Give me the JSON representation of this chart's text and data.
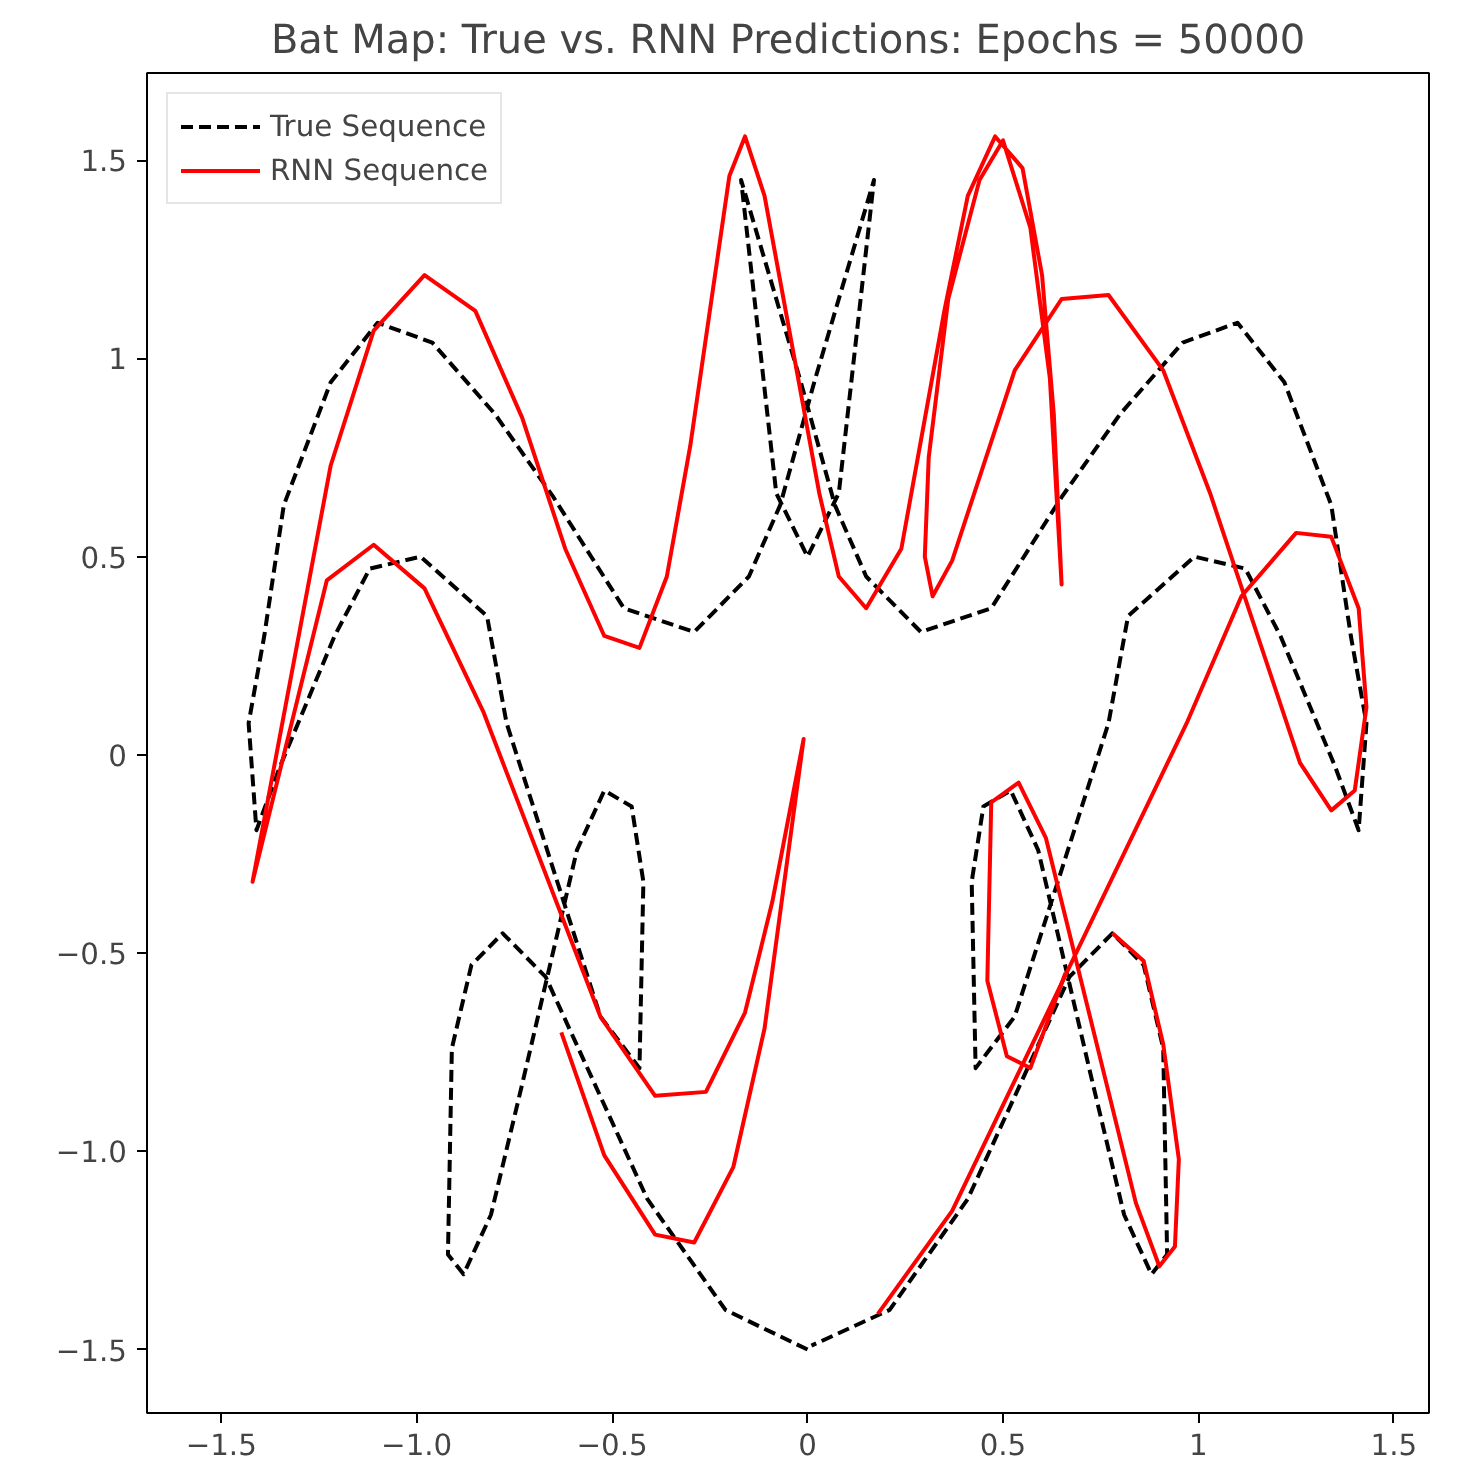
{
  "chart_data": {
    "type": "line",
    "title": "Bat Map: True vs. RNN Predictions: Epochs = 50000",
    "xlim": [
      -1.69,
      1.59
    ],
    "ylim": [
      -1.66,
      1.72
    ],
    "xticks": [
      {
        "value": -1.5,
        "label": "−1.5"
      },
      {
        "value": -1.0,
        "label": "−1.0"
      },
      {
        "value": -0.5,
        "label": "−0.5"
      },
      0.0,
      0.5,
      1.0,
      1.5
    ],
    "yticks": [
      {
        "value": -1.5,
        "label": "−1.5"
      },
      {
        "value": -1.0,
        "label": "−1.0"
      },
      {
        "value": -0.5,
        "label": "−0.5"
      },
      0.0,
      0.5,
      1.0,
      1.5
    ],
    "grid": false,
    "legend": "top left",
    "marker": "none",
    "series": [
      {
        "name": "True Sequence",
        "color": "#000000",
        "line_style": "dashed",
        "x": [
          0.0,
          -0.21,
          -0.41,
          -0.67,
          -0.78,
          -0.86,
          -0.91,
          -0.92,
          -0.88,
          -0.81,
          -0.73,
          -0.59,
          -0.52,
          -0.45,
          -0.42,
          -0.43,
          -0.53,
          -0.77,
          -0.82,
          -0.99,
          -1.12,
          -1.21,
          -1.35,
          -1.41,
          -1.43,
          -1.39,
          -1.34,
          -1.22,
          -1.1,
          -0.96,
          -0.8,
          -0.65,
          -0.47,
          -0.29,
          -0.15,
          -0.07,
          0.02,
          0.17,
          0.08,
          0.0,
          -0.08,
          -0.17,
          -0.02,
          0.07,
          0.15,
          0.29,
          0.47,
          0.65,
          0.8,
          0.96,
          1.1,
          1.22,
          1.34,
          1.39,
          1.43,
          1.41,
          1.35,
          1.21,
          1.12,
          0.99,
          0.82,
          0.77,
          0.53,
          0.43,
          0.42,
          0.45,
          0.52,
          0.59,
          0.73,
          0.81,
          0.88,
          0.92,
          0.91,
          0.86,
          0.78,
          0.67,
          0.41,
          0.21,
          0.01
        ],
        "values": [
          -1.5,
          -1.4,
          -1.12,
          -0.56,
          -0.45,
          -0.53,
          -0.74,
          -1.26,
          -1.31,
          -1.16,
          -0.83,
          -0.24,
          -0.09,
          -0.13,
          -0.32,
          -0.79,
          -0.66,
          0.08,
          0.35,
          0.5,
          0.47,
          0.3,
          -0.03,
          -0.19,
          0.08,
          0.3,
          0.63,
          0.94,
          1.09,
          1.04,
          0.86,
          0.65,
          0.37,
          0.31,
          0.45,
          0.63,
          0.95,
          1.45,
          0.66,
          0.5,
          0.66,
          1.45,
          0.95,
          0.63,
          0.45,
          0.31,
          0.37,
          0.65,
          0.86,
          1.04,
          1.09,
          0.94,
          0.63,
          0.3,
          0.08,
          -0.19,
          -0.03,
          0.3,
          0.47,
          0.5,
          0.35,
          0.08,
          -0.66,
          -0.79,
          -0.32,
          -0.13,
          -0.09,
          -0.24,
          -0.83,
          -1.16,
          -1.31,
          -1.26,
          -0.74,
          -0.53,
          -0.45,
          -0.56,
          -1.12,
          -1.4,
          -1.49
        ]
      },
      {
        "name": "RNN Sequence",
        "color": "#ff0000",
        "line_style": "solid",
        "x": [
          0.66,
          0.57,
          0.51,
          0.46,
          0.47,
          0.54,
          0.61,
          0.84,
          0.9,
          0.94,
          0.95,
          0.91,
          0.86,
          0.78,
          0.0,
          -0.63,
          -0.52,
          -0.39,
          -0.29,
          -0.19,
          -0.11,
          -0.01,
          -0.09,
          -0.16,
          -0.26,
          -0.39,
          -0.53,
          -0.83,
          -0.98,
          -1.11,
          -1.23,
          -1.42,
          -1.22,
          -1.11,
          -0.98,
          -0.85,
          -0.73,
          -0.62,
          -0.52,
          -0.43,
          -0.36,
          -0.3,
          -0.2,
          -0.16,
          -0.11,
          0.03,
          0.08,
          0.15,
          0.24,
          0.35,
          0.41,
          0.48,
          0.55,
          0.6,
          0.63,
          0.65,
          0.62,
          0.57,
          0.5,
          0.44,
          0.36,
          0.31,
          0.3,
          0.32,
          0.37,
          0.53,
          0.65,
          0.77,
          0.91,
          1.03,
          1.26,
          1.34,
          1.4,
          1.43,
          1.41,
          1.34,
          1.25,
          1.11,
          0.97,
          0.37,
          0.18
        ],
        "values": [
          -0.55,
          -0.79,
          -0.76,
          -0.57,
          -0.12,
          -0.07,
          -0.21,
          -1.13,
          -1.29,
          -1.24,
          -1.02,
          -0.73,
          -0.52,
          -0.45,
          null,
          -0.7,
          -1.01,
          -1.21,
          -1.23,
          -1.04,
          -0.69,
          0.04,
          -0.37,
          -0.65,
          -0.85,
          -0.86,
          -0.66,
          0.11,
          0.42,
          0.53,
          0.44,
          -0.32,
          0.73,
          1.07,
          1.21,
          1.12,
          0.85,
          0.52,
          0.3,
          0.27,
          0.45,
          0.78,
          1.46,
          1.56,
          1.41,
          0.66,
          0.45,
          0.37,
          0.52,
          1.12,
          1.41,
          1.56,
          1.48,
          1.21,
          0.86,
          0.43,
          0.95,
          1.33,
          1.55,
          1.45,
          1.15,
          0.75,
          0.5,
          0.4,
          0.49,
          0.97,
          1.15,
          1.16,
          0.97,
          0.66,
          -0.02,
          -0.14,
          -0.09,
          0.12,
          0.37,
          0.55,
          0.56,
          0.4,
          0.08,
          -1.15,
          -1.41
        ]
      }
    ]
  }
}
